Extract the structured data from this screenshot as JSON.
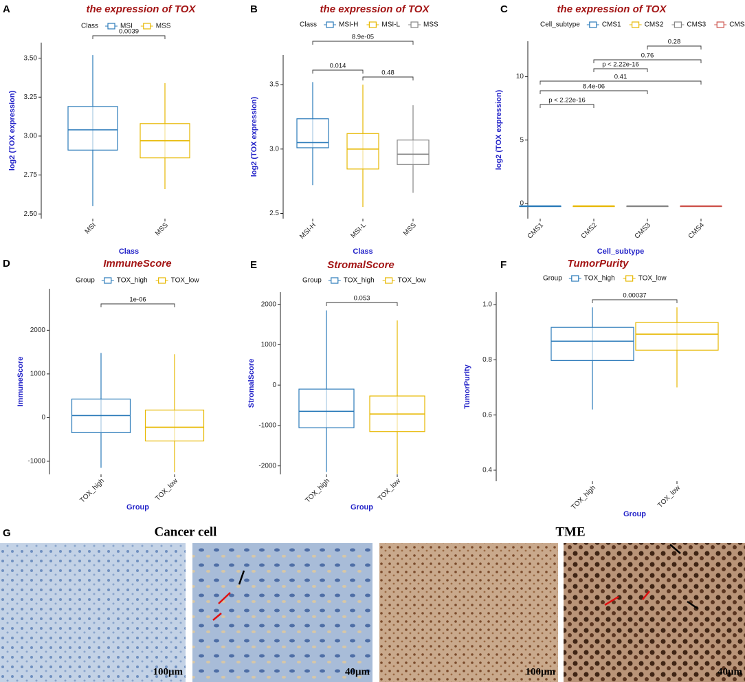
{
  "panels": [
    "A",
    "B",
    "C",
    "D",
    "E",
    "F",
    "G"
  ],
  "chart_data": [
    {
      "type": "box",
      "title": "the expression of TOX",
      "legend_title": "Class",
      "categories": [
        "MSI",
        "MSS"
      ],
      "colors": [
        "#2a7ab9",
        "#e7b800"
      ],
      "boxes": [
        {
          "whislo": 2.55,
          "q1": 2.91,
          "median": 3.04,
          "q3": 3.19,
          "whishi": 3.52
        },
        {
          "whislo": 2.66,
          "q1": 2.86,
          "median": 2.97,
          "q3": 3.08,
          "whishi": 3.34
        }
      ],
      "comparisons": [
        {
          "between": [
            "MSI",
            "MSS"
          ],
          "label": "0.0039"
        }
      ],
      "x_label": "Class",
      "y_label": "log2 (TOX expression)",
      "ylim": [
        2.47,
        3.6
      ],
      "yticks": [
        {
          "value": 2.5,
          "label": "2.50"
        },
        {
          "value": 2.75,
          "label": "2.75"
        },
        {
          "value": 3.0,
          "label": "3.00"
        },
        {
          "value": 3.25,
          "label": "3.25"
        },
        {
          "value": 3.5,
          "label": "3.50"
        }
      ]
    },
    {
      "type": "box",
      "title": "the expression of TOX",
      "legend_title": "Class",
      "categories": [
        "MSI-H",
        "MSI-L",
        "MSS"
      ],
      "colors": [
        "#2a7ab9",
        "#e7b800",
        "#868686"
      ],
      "boxes": [
        {
          "whislo": 2.72,
          "q1": 3.01,
          "median": 3.05,
          "q3": 3.235,
          "whishi": 3.52
        },
        {
          "whislo": 2.55,
          "q1": 2.845,
          "median": 3.0,
          "q3": 3.12,
          "whishi": 3.5
        },
        {
          "whislo": 2.66,
          "q1": 2.88,
          "median": 2.96,
          "q3": 3.07,
          "whishi": 3.34
        }
      ],
      "comparisons": [
        {
          "between": [
            "MSI-H",
            "MSI-L"
          ],
          "label": "0.014"
        },
        {
          "between": [
            "MSI-L",
            "MSS"
          ],
          "label": "0.48"
        },
        {
          "between": [
            "MSI-H",
            "MSS"
          ],
          "label": "8.9e-05"
        }
      ],
      "x_label": "Class",
      "y_label": "log2 (TOX expression)",
      "ylim": [
        2.46,
        3.73
      ],
      "yticks": [
        2.5,
        {
          "value": 3.0,
          "label": "3.0"
        },
        3.5
      ]
    },
    {
      "type": "box",
      "title": "the expression of TOX",
      "legend_title": "Cell_subtype",
      "categories": [
        "CMS1",
        "CMS2",
        "CMS3",
        "CMS4"
      ],
      "colors": [
        "#2a7ab9",
        "#e7b800",
        "#868686",
        "#cd534c"
      ],
      "boxes": [
        {
          "whislo": -0.2,
          "q1": -0.2,
          "median": -0.2,
          "q3": -0.2,
          "whishi": -0.2
        },
        {
          "whislo": -0.2,
          "q1": -0.2,
          "median": -0.2,
          "q3": -0.2,
          "whishi": -0.2
        },
        {
          "whislo": -0.2,
          "q1": -0.2,
          "median": -0.2,
          "q3": -0.2,
          "whishi": -0.2
        },
        {
          "whislo": -0.2,
          "q1": -0.2,
          "median": -0.2,
          "q3": -0.2,
          "whishi": -0.2
        }
      ],
      "comparisons": [
        {
          "between": [
            "CMS1",
            "CMS2"
          ],
          "label": "p < 2.22e-16"
        },
        {
          "between": [
            "CMS1",
            "CMS3"
          ],
          "label": "8.4e-06"
        },
        {
          "between": [
            "CMS1",
            "CMS4"
          ],
          "label": "0.41"
        },
        {
          "between": [
            "CMS2",
            "CMS3"
          ],
          "label": "p < 2.22e-16"
        },
        {
          "between": [
            "CMS2",
            "CMS4"
          ],
          "label": "0.76"
        },
        {
          "between": [
            "CMS3",
            "CMS4"
          ],
          "label": "0.28"
        }
      ],
      "x_label": "Cell_subtype",
      "y_label": "log2 (TOX expression)",
      "ylim": [
        -1.2,
        12.8
      ],
      "yticks": [
        0,
        5,
        10
      ]
    },
    {
      "type": "box",
      "title": "ImmuneScore",
      "legend_title": "Group",
      "categories": [
        "TOX_high",
        "TOX_low"
      ],
      "colors": [
        "#2a7ab9",
        "#e7b800"
      ],
      "boxes": [
        {
          "whislo": -1150,
          "q1": -346,
          "median": 47,
          "q3": 425,
          "whishi": 1480
        },
        {
          "whislo": -1250,
          "q1": -535,
          "median": -220,
          "q3": 173,
          "whishi": 1450
        }
      ],
      "comparisons": [
        {
          "between": [
            "TOX_high",
            "TOX_low"
          ],
          "label": "1e-06"
        }
      ],
      "x_label": "Group",
      "y_label": "ImmuneScore",
      "ylim": [
        -1300,
        2950
      ],
      "yticks": [
        -1000,
        0,
        1000,
        2000
      ]
    },
    {
      "type": "box",
      "title": "StromalScore",
      "legend_title": "Group",
      "categories": [
        "TOX_high",
        "TOX_low"
      ],
      "colors": [
        "#2a7ab9",
        "#e7b800"
      ],
      "boxes": [
        {
          "whislo": -2150,
          "q1": -1055,
          "median": -650,
          "q3": -100,
          "whishi": 1850
        },
        {
          "whislo": -2200,
          "q1": -1150,
          "median": -715,
          "q3": -270,
          "whishi": 1600
        }
      ],
      "comparisons": [
        {
          "between": [
            "TOX_high",
            "TOX_low"
          ],
          "label": "0.053"
        }
      ],
      "x_label": "Group",
      "y_label": "StromalScore",
      "ylim": [
        -2210,
        2300
      ],
      "yticks": [
        -2000,
        -1000,
        0,
        1000,
        2000
      ]
    },
    {
      "type": "box",
      "title": "TumorPurity",
      "legend_title": "Group",
      "categories": [
        "TOX_high",
        "TOX_low"
      ],
      "colors": [
        "#2a7ab9",
        "#e7b800"
      ],
      "boxes": [
        {
          "whislo": 0.62,
          "q1": 0.7975,
          "median": 0.8675,
          "q3": 0.9175,
          "whishi": 0.99
        },
        {
          "whislo": 0.7,
          "q1": 0.835,
          "median": 0.893,
          "q3": 0.935,
          "whishi": 0.99
        }
      ],
      "comparisons": [
        {
          "between": [
            "TOX_high",
            "TOX_low"
          ],
          "label": "0.00037"
        }
      ],
      "x_label": "Group",
      "y_label": "TumorPurity",
      "ylim": [
        0.36,
        1.045
      ],
      "yticks": [
        0.4,
        0.6,
        0.8,
        {
          "value": 1.0,
          "label": "1.0"
        }
      ]
    }
  ],
  "micrographs": {
    "titles": [
      "Cancer cell",
      "TME"
    ],
    "scale_labels": [
      "100μm",
      "40μm",
      "100μm",
      "40μm"
    ]
  }
}
